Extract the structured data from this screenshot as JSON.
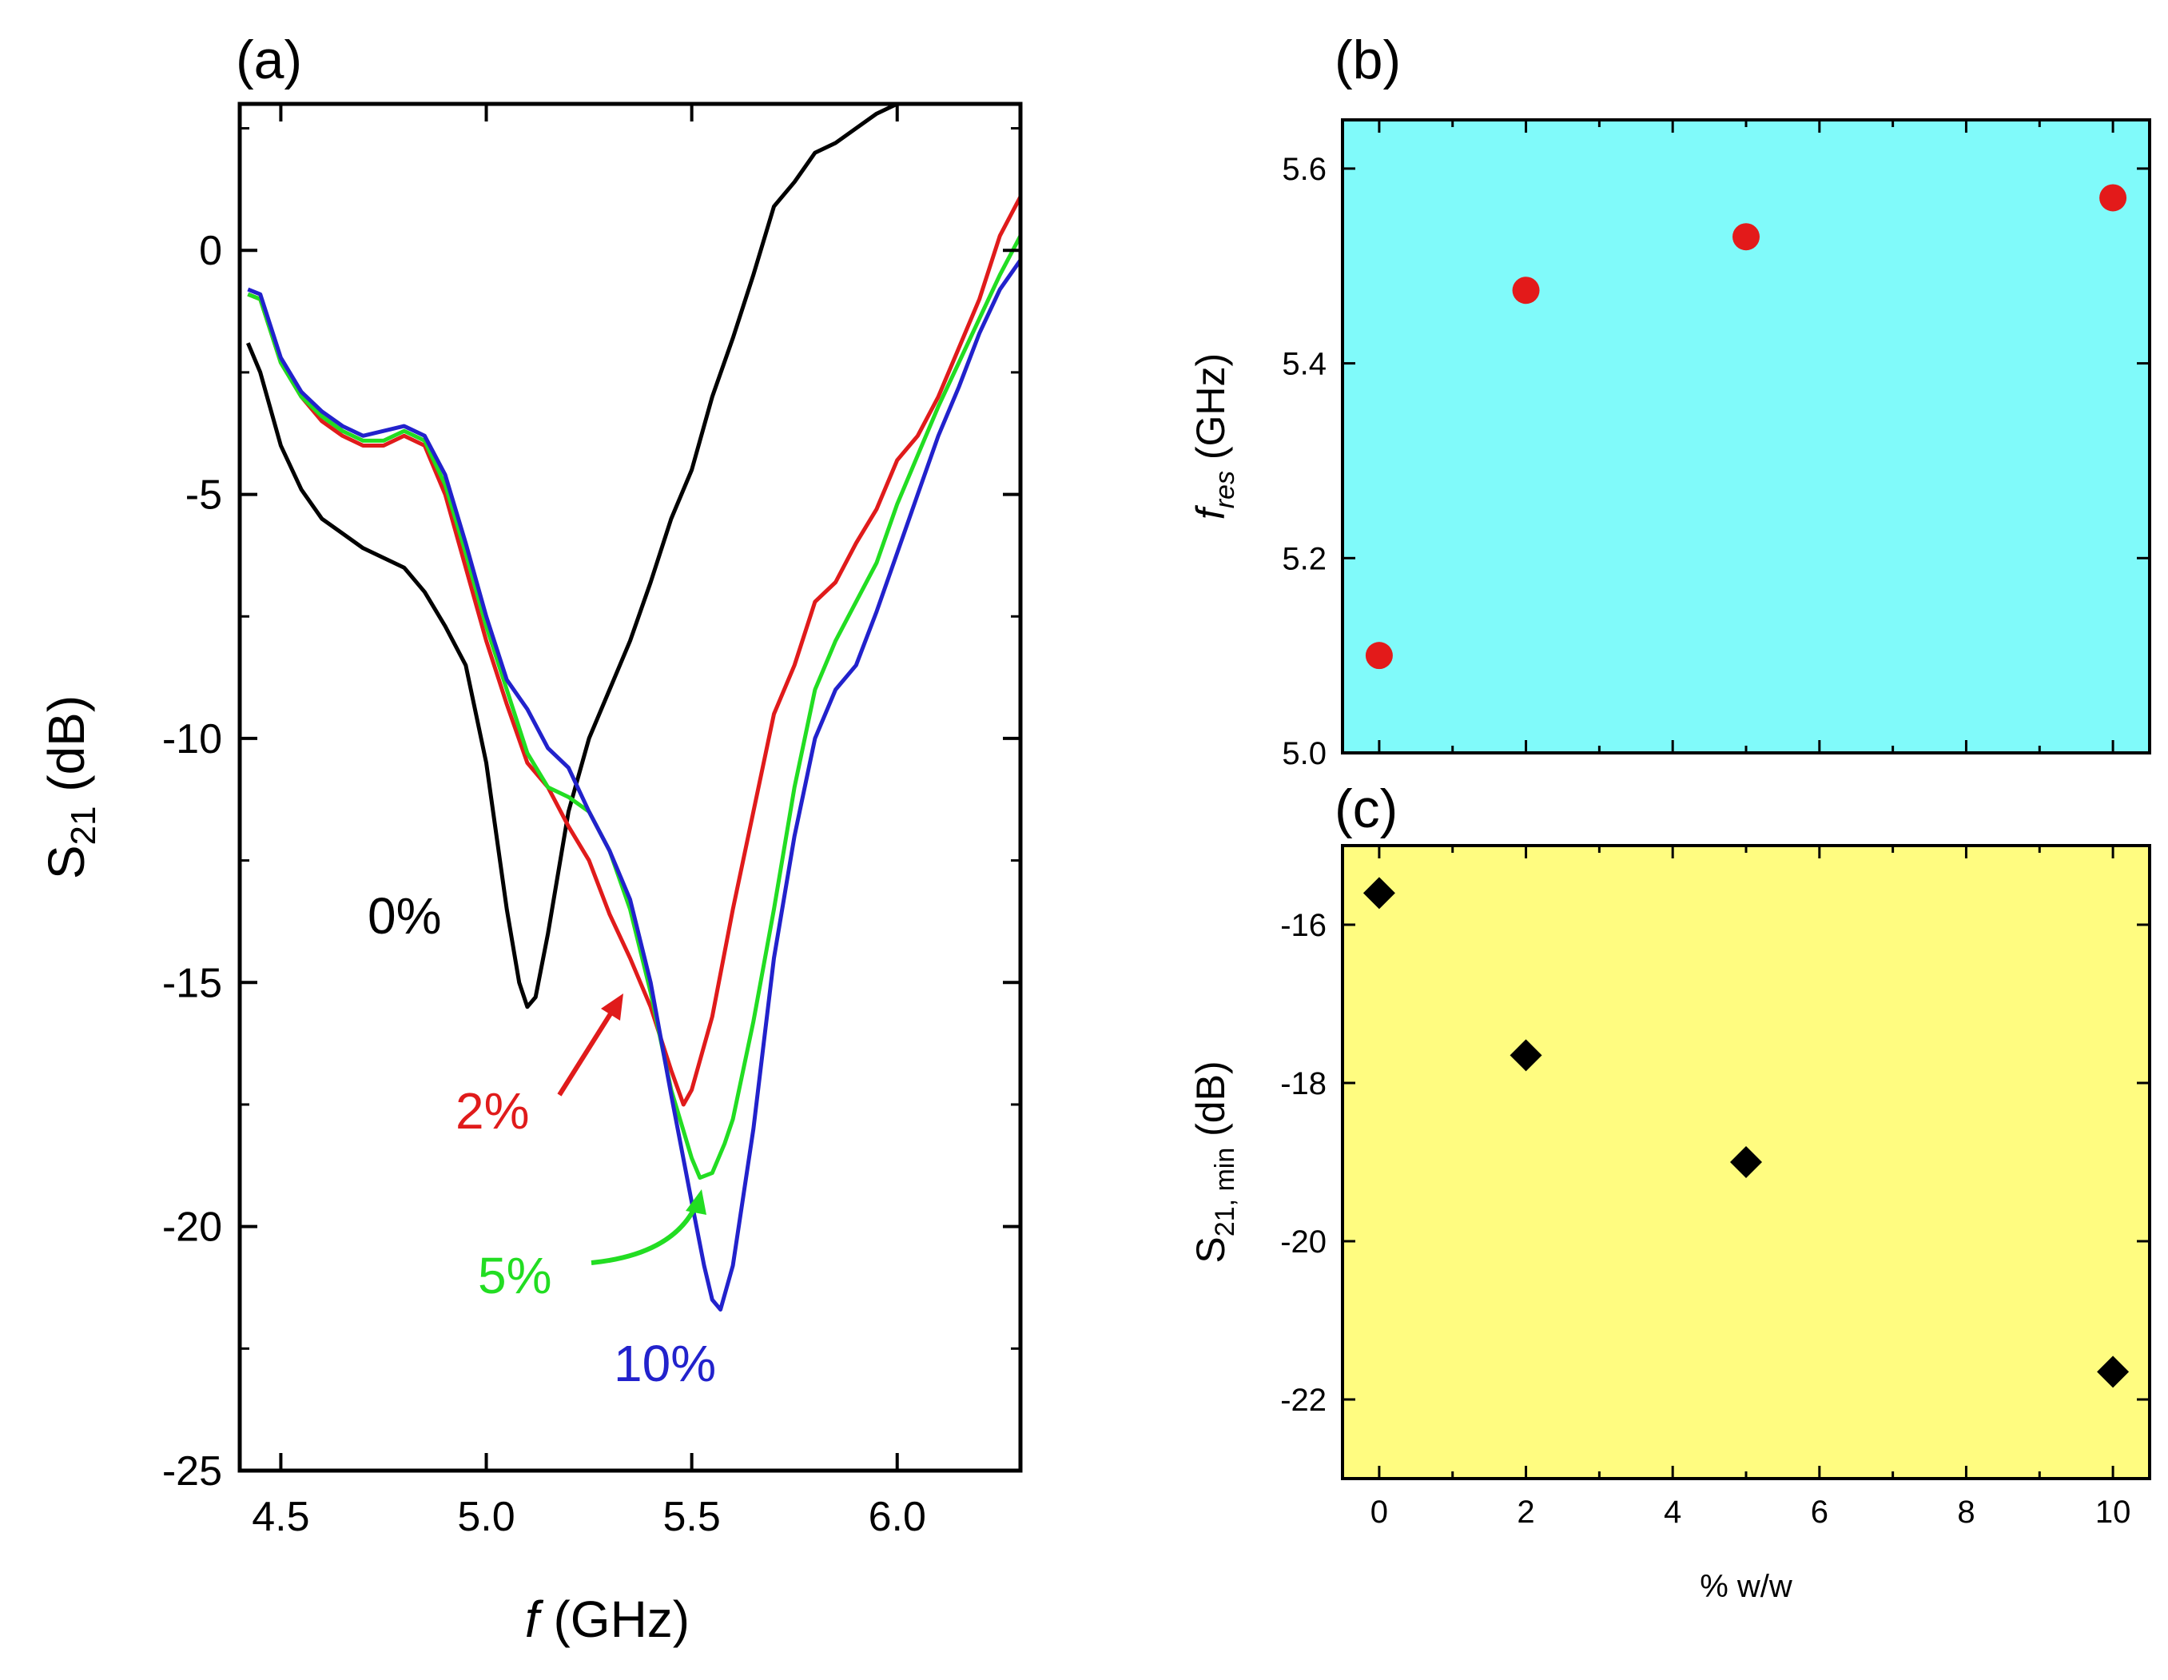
{
  "chart_data": [
    {
      "panel": "(a)",
      "type": "line",
      "xlabel": "(GHz)",
      "xlabel_var": "f",
      "ylabel_main": "S",
      "ylabel_sub": "21",
      "ylabel_unit": "(dB)",
      "xlim": [
        4.4,
        6.3
      ],
      "ylim": [
        -25,
        3
      ],
      "x_ticks": [
        4.5,
        5.0,
        5.5,
        6.0
      ],
      "x_tick_labels": [
        "4.5",
        "5.0",
        "5.5",
        "6.0"
      ],
      "y_ticks": [
        0,
        -5,
        -10,
        -15,
        -20,
        -25
      ],
      "y_tick_labels": [
        "0",
        "-5",
        "-10",
        "-15",
        "-20",
        "-25"
      ],
      "series": [
        {
          "name": "0%",
          "color": "#000000",
          "x": [
            4.42,
            4.45,
            4.5,
            4.55,
            4.6,
            4.65,
            4.7,
            4.75,
            4.8,
            4.85,
            4.9,
            4.95,
            5.0,
            5.05,
            5.08,
            5.1,
            5.12,
            5.15,
            5.2,
            5.25,
            5.3,
            5.35,
            5.4,
            5.45,
            5.5,
            5.55,
            5.6,
            5.65,
            5.7,
            5.75,
            5.8,
            5.85,
            5.9,
            5.95,
            6.0
          ],
          "y": [
            -1.9,
            -2.5,
            -4.0,
            -4.9,
            -5.5,
            -5.8,
            -6.1,
            -6.3,
            -6.5,
            -7.0,
            -7.7,
            -8.5,
            -10.5,
            -13.5,
            -15.0,
            -15.5,
            -15.3,
            -14.0,
            -11.5,
            -10.0,
            -9.0,
            -8.0,
            -6.8,
            -5.5,
            -4.5,
            -3.0,
            -1.8,
            -0.5,
            0.9,
            1.4,
            2.0,
            2.2,
            2.5,
            2.8,
            3.0
          ]
        },
        {
          "name": "2%",
          "color": "#e01b1b",
          "x": [
            4.42,
            4.45,
            4.5,
            4.55,
            4.6,
            4.65,
            4.7,
            4.75,
            4.8,
            4.85,
            4.9,
            4.95,
            5.0,
            5.05,
            5.1,
            5.15,
            5.2,
            5.25,
            5.3,
            5.35,
            5.4,
            5.45,
            5.48,
            5.5,
            5.55,
            5.6,
            5.65,
            5.7,
            5.75,
            5.8,
            5.85,
            5.9,
            5.95,
            6.0,
            6.05,
            6.1,
            6.15,
            6.2,
            6.25,
            6.3
          ],
          "y": [
            -0.9,
            -1.0,
            -2.3,
            -3.0,
            -3.5,
            -3.8,
            -4.0,
            -4.0,
            -3.8,
            -4.0,
            -5.0,
            -6.5,
            -8.0,
            -9.3,
            -10.5,
            -11.0,
            -11.8,
            -12.5,
            -13.6,
            -14.5,
            -15.5,
            -16.8,
            -17.5,
            -17.2,
            -15.7,
            -13.5,
            -11.5,
            -9.5,
            -8.5,
            -7.2,
            -6.8,
            -6.0,
            -5.3,
            -4.3,
            -3.8,
            -3.0,
            -2.0,
            -1.0,
            0.3,
            1.1
          ]
        },
        {
          "name": "5%",
          "color": "#22dd22",
          "x": [
            4.42,
            4.45,
            4.5,
            4.55,
            4.6,
            4.65,
            4.7,
            4.75,
            4.8,
            4.85,
            4.9,
            4.95,
            5.0,
            5.05,
            5.1,
            5.15,
            5.2,
            5.25,
            5.3,
            5.35,
            5.4,
            5.45,
            5.5,
            5.52,
            5.55,
            5.58,
            5.6,
            5.65,
            5.7,
            5.75,
            5.8,
            5.85,
            5.9,
            5.95,
            6.0,
            6.05,
            6.1,
            6.15,
            6.2,
            6.25,
            6.3
          ],
          "y": [
            -0.9,
            -1.0,
            -2.3,
            -3.0,
            -3.4,
            -3.7,
            -3.9,
            -3.9,
            -3.7,
            -3.9,
            -4.8,
            -6.2,
            -7.7,
            -9.0,
            -10.3,
            -11.0,
            -11.2,
            -11.5,
            -12.3,
            -13.5,
            -15.2,
            -17.2,
            -18.6,
            -19.0,
            -18.9,
            -18.3,
            -17.8,
            -15.8,
            -13.5,
            -11.0,
            -9.0,
            -8.0,
            -7.2,
            -6.4,
            -5.2,
            -4.2,
            -3.2,
            -2.3,
            -1.4,
            -0.5,
            0.3
          ]
        },
        {
          "name": "10%",
          "color": "#2222cc",
          "x": [
            4.42,
            4.45,
            4.5,
            4.55,
            4.6,
            4.65,
            4.7,
            4.75,
            4.8,
            4.85,
            4.9,
            4.95,
            5.0,
            5.05,
            5.1,
            5.15,
            5.2,
            5.25,
            5.3,
            5.35,
            5.4,
            5.45,
            5.5,
            5.53,
            5.55,
            5.57,
            5.6,
            5.65,
            5.7,
            5.75,
            5.8,
            5.85,
            5.9,
            5.95,
            6.0,
            6.05,
            6.1,
            6.15,
            6.2,
            6.25,
            6.3
          ],
          "y": [
            -0.8,
            -0.9,
            -2.2,
            -2.9,
            -3.3,
            -3.6,
            -3.8,
            -3.7,
            -3.6,
            -3.8,
            -4.6,
            -6.0,
            -7.5,
            -8.8,
            -9.4,
            -10.2,
            -10.6,
            -11.5,
            -12.3,
            -13.3,
            -15.0,
            -17.3,
            -19.5,
            -20.8,
            -21.5,
            -21.7,
            -20.8,
            -18.0,
            -14.5,
            -12.0,
            -10.0,
            -9.0,
            -8.5,
            -7.4,
            -6.2,
            -5.0,
            -3.8,
            -2.8,
            -1.7,
            -0.8,
            -0.2
          ]
        }
      ],
      "annotations": [
        {
          "text": "0%",
          "color": "#000000"
        },
        {
          "text": "2%",
          "color": "#e01b1b"
        },
        {
          "text": "5%",
          "color": "#22dd22"
        },
        {
          "text": "10%",
          "color": "#2222cc"
        }
      ]
    },
    {
      "panel": "(b)",
      "type": "scatter",
      "ylabel_var": "f",
      "ylabel_sub": "res",
      "ylabel_unit": "(GHz)",
      "xlim": [
        -0.5,
        10.5
      ],
      "ylim": [
        5.0,
        5.65
      ],
      "y_ticks": [
        5.0,
        5.2,
        5.4,
        5.6
      ],
      "y_tick_labels": [
        "5.0",
        "5.2",
        "5.4",
        "5.6"
      ],
      "x_ticks": [
        0,
        2,
        4,
        6,
        8,
        10
      ],
      "background": "#80fafa",
      "marker_color": "#e31a1a",
      "x": [
        0,
        2,
        5,
        10
      ],
      "y": [
        5.1,
        5.475,
        5.53,
        5.57
      ]
    },
    {
      "panel": "(c)",
      "type": "scatter",
      "ylabel_main": "S",
      "ylabel_sub": "21, min",
      "ylabel_unit": "(dB)",
      "xlabel": "% w/w",
      "xlim": [
        -0.5,
        10.5
      ],
      "ylim": [
        -23,
        -15
      ],
      "y_ticks": [
        -16,
        -18,
        -20,
        -22
      ],
      "y_tick_labels": [
        "-16",
        "-18",
        "-20",
        "-22"
      ],
      "x_ticks": [
        0,
        2,
        4,
        6,
        8,
        10
      ],
      "x_tick_labels": [
        "0",
        "2",
        "4",
        "6",
        "8",
        "10"
      ],
      "background": "#fffc80",
      "marker_color": "#000000",
      "x": [
        0,
        2,
        5,
        10
      ],
      "y": [
        -15.6,
        -17.65,
        -19.0,
        -21.65
      ]
    }
  ]
}
